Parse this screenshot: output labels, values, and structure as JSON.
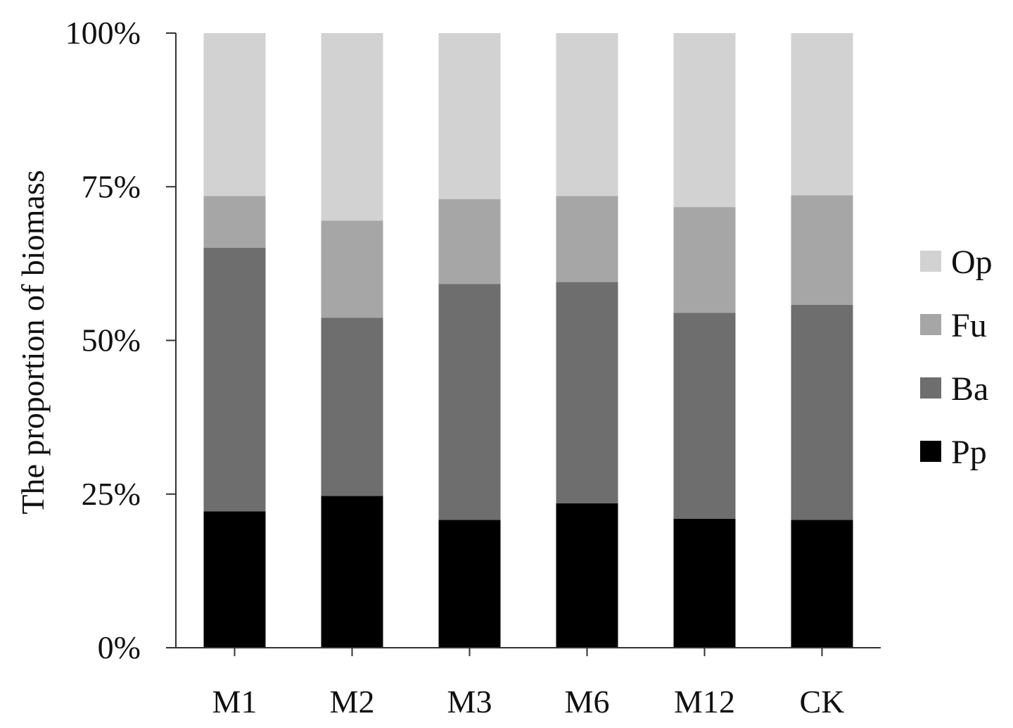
{
  "chart_data": {
    "type": "bar",
    "stacked": true,
    "percent": true,
    "title": "",
    "xlabel": "",
    "ylabel": "The proportion of biomass",
    "ylim": [
      0,
      100
    ],
    "yticks": [
      "0%",
      "25%",
      "50%",
      "75%",
      "100%"
    ],
    "ytick_values": [
      0,
      25,
      50,
      75,
      100
    ],
    "categories": [
      "M1",
      "M2",
      "M3",
      "M6",
      "M12",
      "CK"
    ],
    "series": [
      {
        "name": "Pp",
        "color": "#000000",
        "values": [
          22.2,
          24.7,
          20.8,
          23.5,
          21.0,
          20.8
        ]
      },
      {
        "name": "Ba",
        "color": "#6e6e6e",
        "values": [
          42.9,
          29.0,
          38.4,
          36.0,
          33.5,
          35.0
        ]
      },
      {
        "name": "Fu",
        "color": "#a6a6a6",
        "values": [
          8.4,
          15.8,
          13.8,
          14.0,
          17.2,
          17.8
        ]
      },
      {
        "name": "Op",
        "color": "#d2d2d2",
        "values": [
          26.5,
          30.5,
          27.0,
          26.5,
          28.3,
          26.4
        ]
      }
    ],
    "legend": {
      "position": "right",
      "order": [
        "Op",
        "Fu",
        "Ba",
        "Pp"
      ]
    },
    "grid": false
  }
}
